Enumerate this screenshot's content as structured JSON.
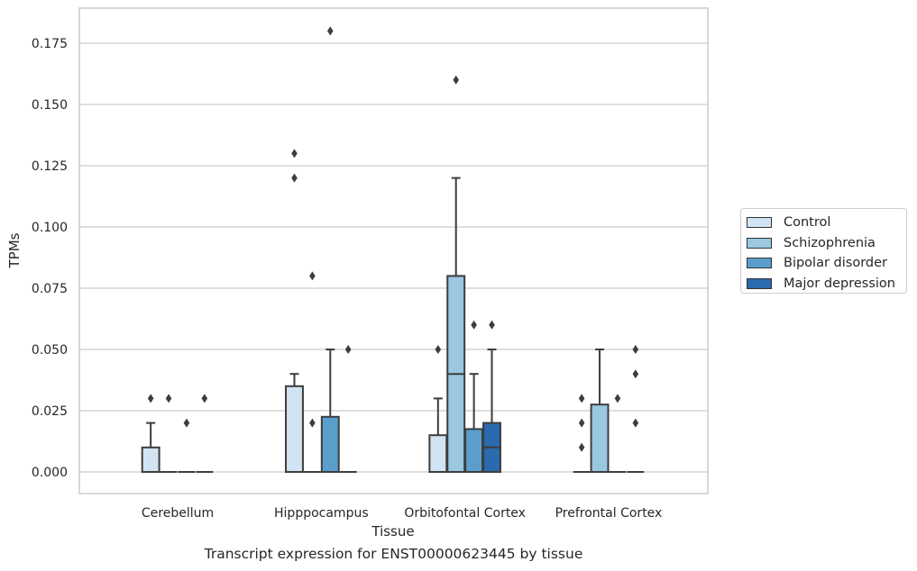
{
  "chart_data": {
    "type": "box",
    "title": "",
    "xlabel": "Tissue",
    "ylabel": "TPMs",
    "caption": "Transcript expression for ENST00000623445 by tissue",
    "ylim": [
      -0.0175,
      0.1885
    ],
    "yticks": [
      0.0,
      0.025,
      0.05,
      0.075,
      0.1,
      0.125,
      0.15,
      0.175
    ],
    "ytick_labels": [
      "0.000",
      "0.025",
      "0.050",
      "0.075",
      "0.100",
      "0.125",
      "0.150",
      "0.175"
    ],
    "grid": "horizontal",
    "legend_position": "right",
    "categories": [
      "Cerebellum",
      "Hipppocampus",
      "Orbitofontal Cortex",
      "Prefrontal Cortex"
    ],
    "series": [
      {
        "name": "Control",
        "color": "#d2e3f3",
        "boxes": [
          {
            "q1": 0.0,
            "median": 0.0,
            "q3": 0.01,
            "whisker_low": 0.0,
            "whisker_high": 0.02,
            "outliers": [
              0.03
            ]
          },
          {
            "q1": 0.0,
            "median": 0.0,
            "q3": 0.035,
            "whisker_low": 0.0,
            "whisker_high": 0.04,
            "outliers": [
              0.12,
              0.13
            ]
          },
          {
            "q1": 0.0,
            "median": 0.0,
            "q3": 0.015,
            "whisker_low": 0.0,
            "whisker_high": 0.03,
            "outliers": [
              0.05
            ]
          },
          {
            "q1": 0.0,
            "median": 0.0,
            "q3": 0.0,
            "whisker_low": 0.0,
            "whisker_high": 0.0,
            "outliers": [
              0.01,
              0.02,
              0.03
            ]
          }
        ]
      },
      {
        "name": "Schizophrenia",
        "color": "#9ac8e0",
        "boxes": [
          {
            "q1": 0.0,
            "median": 0.0,
            "q3": 0.0,
            "whisker_low": 0.0,
            "whisker_high": 0.0,
            "outliers": [
              0.03
            ]
          },
          {
            "q1": 0.0,
            "median": 0.0,
            "q3": 0.0,
            "whisker_low": 0.0,
            "whisker_high": 0.0,
            "outliers": [
              0.02,
              0.08
            ]
          },
          {
            "q1": 0.0,
            "median": 0.04,
            "q3": 0.08,
            "whisker_low": 0.0,
            "whisker_high": 0.12,
            "outliers": [
              0.16
            ]
          },
          {
            "q1": 0.0,
            "median": 0.0,
            "q3": 0.0275,
            "whisker_low": 0.0,
            "whisker_high": 0.05,
            "outliers": []
          }
        ]
      },
      {
        "name": "Bipolar disorder",
        "color": "#5a9fcc",
        "boxes": [
          {
            "q1": 0.0,
            "median": 0.0,
            "q3": 0.0,
            "whisker_low": 0.0,
            "whisker_high": 0.0,
            "outliers": [
              0.02
            ]
          },
          {
            "q1": 0.0,
            "median": 0.0,
            "q3": 0.0225,
            "whisker_low": 0.0,
            "whisker_high": 0.05,
            "outliers": [
              0.18
            ]
          },
          {
            "q1": 0.0,
            "median": 0.0,
            "q3": 0.0175,
            "whisker_low": 0.0,
            "whisker_high": 0.04,
            "outliers": [
              0.06
            ]
          },
          {
            "q1": 0.0,
            "median": 0.0,
            "q3": 0.0,
            "whisker_low": 0.0,
            "whisker_high": 0.0,
            "outliers": [
              0.03
            ]
          }
        ]
      },
      {
        "name": "Major depression",
        "color": "#2a6aae",
        "boxes": [
          {
            "q1": 0.0,
            "median": 0.0,
            "q3": 0.0,
            "whisker_low": 0.0,
            "whisker_high": 0.0,
            "outliers": [
              0.03
            ]
          },
          {
            "q1": 0.0,
            "median": 0.0,
            "q3": 0.0,
            "whisker_low": 0.0,
            "whisker_high": 0.0,
            "outliers": [
              0.05
            ]
          },
          {
            "q1": 0.0,
            "median": 0.01,
            "q3": 0.02,
            "whisker_low": 0.0,
            "whisker_high": 0.05,
            "outliers": [
              0.06
            ]
          },
          {
            "q1": 0.0,
            "median": 0.0,
            "q3": 0.0,
            "whisker_low": 0.0,
            "whisker_high": 0.0,
            "outliers": [
              0.02,
              0.04,
              0.05
            ]
          }
        ]
      }
    ]
  }
}
